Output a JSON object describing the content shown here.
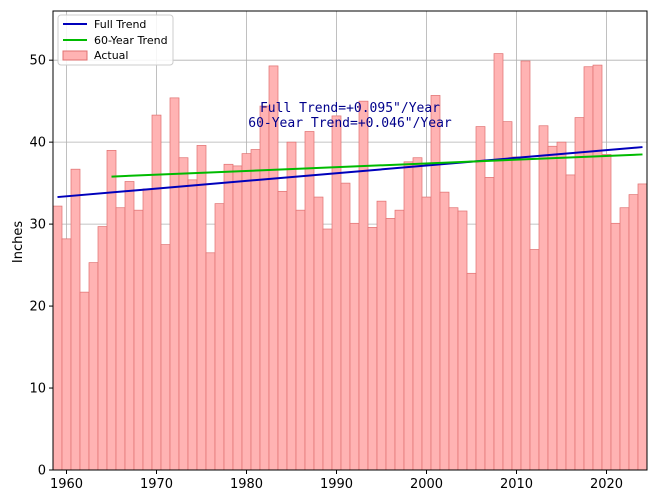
{
  "chart_data": {
    "type": "bar",
    "ylabel": "Inches",
    "xlabel": "",
    "xlim": [
      1958.5,
      2024.5
    ],
    "ylim": [
      0,
      56
    ],
    "x_ticks": [
      1960,
      1970,
      1980,
      1990,
      2000,
      2010,
      2020
    ],
    "y_ticks": [
      0,
      10,
      20,
      30,
      40,
      50
    ],
    "grid": true,
    "legend_position": "top-left",
    "legend": {
      "full_trend": "Full Trend",
      "sixty_year_trend": "60-Year Trend",
      "actual": "Actual"
    },
    "annotations": {
      "line1": "Full Trend=+0.095\"/Year",
      "line2": "60-Year Trend=+0.046\"/Year"
    },
    "colors": {
      "bar_fill": "#ffb3b3",
      "bar_edge": "#e07070",
      "full_trend": "#0000bb",
      "sixty_year_trend": "#00bb00",
      "annotation": "#00008b",
      "grid": "#b0b0b0"
    },
    "series": [
      {
        "name": "Actual",
        "x": [
          1959,
          1960,
          1961,
          1962,
          1963,
          1964,
          1965,
          1966,
          1967,
          1968,
          1969,
          1970,
          1971,
          1972,
          1973,
          1974,
          1975,
          1976,
          1977,
          1978,
          1979,
          1980,
          1981,
          1982,
          1983,
          1984,
          1985,
          1986,
          1987,
          1988,
          1989,
          1990,
          1991,
          1992,
          1993,
          1994,
          1995,
          1996,
          1997,
          1998,
          1999,
          2000,
          2001,
          2002,
          2003,
          2004,
          2005,
          2006,
          2007,
          2008,
          2009,
          2010,
          2011,
          2012,
          2013,
          2014,
          2015,
          2016,
          2017,
          2018,
          2019,
          2020,
          2021,
          2022,
          2023,
          2024
        ],
        "values": [
          32.2,
          28.2,
          36.7,
          21.7,
          25.3,
          29.7,
          39.0,
          32.0,
          35.2,
          31.7,
          34.3,
          43.3,
          27.5,
          45.4,
          38.1,
          35.4,
          39.6,
          26.5,
          32.5,
          37.3,
          37.1,
          38.6,
          39.1,
          44.4,
          49.3,
          34.0,
          40.0,
          31.7,
          41.3,
          33.3,
          29.4,
          43.2,
          35.0,
          30.1,
          45.0,
          29.6,
          32.8,
          30.7,
          31.7,
          37.6,
          38.1,
          33.3,
          45.7,
          33.9,
          32.0,
          31.6,
          24.0,
          41.9,
          35.7,
          50.8,
          42.5,
          38.2,
          49.9,
          26.9,
          42.0,
          39.5,
          40.0,
          36.0,
          43.0,
          49.2,
          49.4,
          38.5,
          30.1,
          32.0,
          33.6,
          34.9
        ]
      },
      {
        "name": "Full Trend",
        "x": [
          1959,
          2024
        ],
        "values": [
          33.3,
          39.4
        ]
      },
      {
        "name": "60-Year Trend",
        "x": [
          1965,
          2024
        ],
        "values": [
          35.8,
          38.5
        ]
      }
    ]
  }
}
